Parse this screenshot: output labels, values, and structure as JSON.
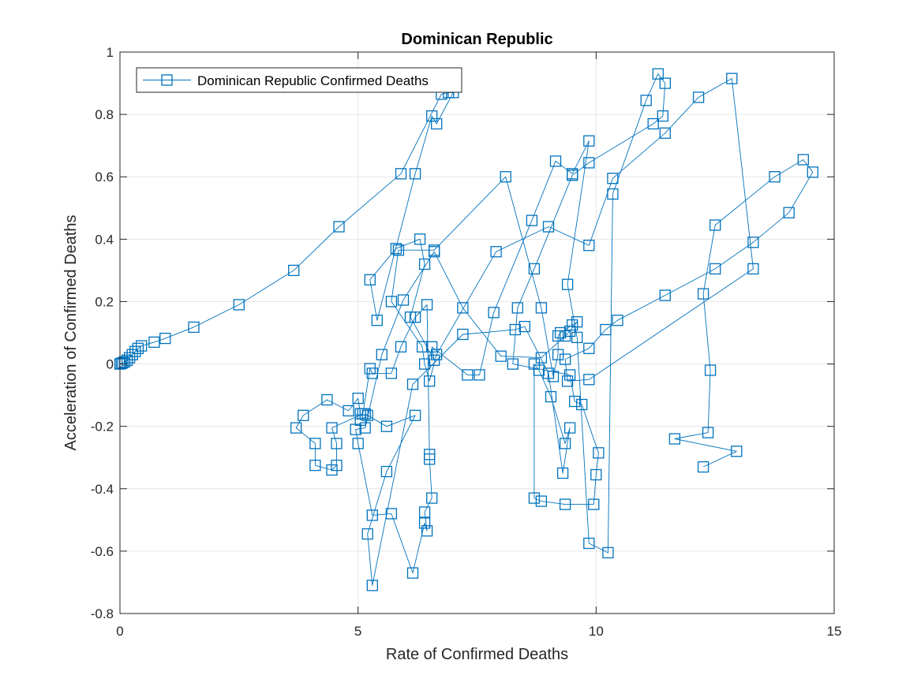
{
  "chart_data": {
    "type": "line",
    "title": "Dominican Republic",
    "xlabel": "Rate of Confirmed Deaths",
    "ylabel": "Acceleration of Confirmed Deaths",
    "xlim": [
      0,
      15
    ],
    "ylim": [
      -0.8,
      1
    ],
    "xticks": [
      0,
      5,
      10,
      15
    ],
    "yticks": [
      -0.8,
      -0.6,
      -0.4,
      -0.2,
      0,
      0.2,
      0.4,
      0.6,
      0.8,
      1
    ],
    "xtick_labels": [
      "0",
      "5",
      "10",
      "15"
    ],
    "ytick_labels": [
      "-0.8",
      "-0.6",
      "-0.4",
      "-0.2",
      "0",
      "0.2",
      "0.4",
      "0.6",
      "0.8",
      "1"
    ],
    "grid": true,
    "legend_location": "top-left",
    "series": [
      {
        "name": "Dominican Republic Confirmed Deaths",
        "color": "#0072BD",
        "marker": "square",
        "x": [
          0,
          0.03,
          0.06,
          0.1,
          0.15,
          0.2,
          0.26,
          0.32,
          0.38,
          0.45,
          0.72,
          0.95,
          1.55,
          2.5,
          3.65,
          4.6,
          5.9,
          6.75,
          6.9,
          7.0,
          6.65,
          6.55,
          6.2,
          5.4,
          5.25,
          5.8,
          6.3,
          6.4,
          6.1,
          6.6,
          6.55,
          7.3,
          7.55,
          7.85,
          8.65,
          9.15,
          9.5,
          9.85,
          9.4,
          9.6,
          9.85,
          10.25,
          10.35,
          11.05,
          11.3,
          11.45,
          11.4,
          11.2,
          9.85,
          9.5,
          8.7,
          8.35,
          8.25,
          9.45,
          9.55,
          9.7,
          10.05,
          10.0,
          9.95,
          9.35,
          8.85,
          8.7,
          8.7,
          8.8,
          9.05,
          9.35,
          9.45,
          9.3,
          9.0,
          8.5,
          8.3,
          7.2,
          6.15,
          5.3,
          5.2,
          5.6,
          6.2,
          5.6,
          5.15,
          5.2,
          5.05,
          5.05,
          5.0,
          4.8,
          4.35,
          3.85,
          3.7,
          4.1,
          4.1,
          4.45,
          4.55,
          4.55,
          4.45,
          5.1,
          5.25,
          5.3,
          5.7,
          5.9,
          6.2,
          6.45,
          6.5,
          6.5,
          6.55,
          6.4,
          6.45,
          6.4,
          6.15,
          5.7,
          5.3,
          5.0,
          4.95,
          5.15,
          5.5,
          5.95,
          6.6,
          7.2,
          8.0,
          8.85,
          9.35,
          9.45,
          9.6,
          9.5,
          9.25,
          9.2,
          9.2,
          9.1,
          8.85,
          8.1,
          6.6,
          5.85,
          5.7,
          6.35,
          6.4,
          6.5,
          6.65,
          7.9,
          9.0,
          9.85,
          10.35,
          11.45,
          12.15,
          12.85,
          13.3,
          9.85,
          9.4,
          9.35,
          9.85,
          10.2,
          10.45,
          11.45,
          12.5,
          13.3,
          14.05,
          14.55,
          14.35,
          13.75,
          12.5,
          12.25,
          12.4,
          12.35,
          11.65,
          12.95,
          12.25
        ],
        "y": [
          0,
          0.002,
          0.004,
          0.007,
          0.012,
          0.02,
          0.03,
          0.04,
          0.05,
          0.058,
          0.07,
          0.082,
          0.118,
          0.19,
          0.3,
          0.44,
          0.61,
          0.865,
          0.87,
          0.87,
          0.77,
          0.795,
          0.61,
          0.14,
          0.27,
          0.37,
          0.4,
          0.32,
          0.15,
          0.012,
          0.055,
          -0.035,
          -0.035,
          0.165,
          0.46,
          0.65,
          0.61,
          0.715,
          0.255,
          0.085,
          -0.575,
          -0.605,
          0.545,
          0.845,
          0.93,
          0.9,
          0.795,
          0.77,
          0.645,
          0.605,
          0.305,
          0.18,
          0.0,
          -0.035,
          -0.12,
          -0.13,
          -0.285,
          -0.355,
          -0.45,
          -0.45,
          -0.44,
          -0.43,
          0.0,
          -0.02,
          -0.105,
          -0.255,
          -0.205,
          -0.35,
          -0.03,
          0.12,
          0.11,
          0.095,
          -0.065,
          -0.71,
          -0.545,
          -0.345,
          -0.165,
          -0.2,
          -0.16,
          -0.165,
          -0.18,
          -0.16,
          -0.11,
          -0.15,
          -0.115,
          -0.165,
          -0.205,
          -0.255,
          -0.325,
          -0.34,
          -0.325,
          -0.255,
          -0.205,
          -0.16,
          -0.015,
          -0.03,
          -0.03,
          0.055,
          0.15,
          0.19,
          -0.29,
          -0.305,
          -0.43,
          -0.475,
          -0.535,
          -0.51,
          -0.67,
          -0.48,
          -0.485,
          -0.255,
          -0.21,
          -0.205,
          0.03,
          0.205,
          0.36,
          0.18,
          0.025,
          0.02,
          0.09,
          0.105,
          0.135,
          0.125,
          0.1,
          0.09,
          0.03,
          -0.04,
          0.18,
          0.6,
          0.365,
          0.365,
          0.2,
          0.055,
          0.0,
          -0.055,
          0.03,
          0.36,
          0.44,
          0.38,
          0.595,
          0.74,
          0.855,
          0.915,
          0.305,
          -0.05,
          -0.055,
          0.015,
          0.05,
          0.11,
          0.14,
          0.22,
          0.305,
          0.39,
          0.485,
          0.615,
          0.655,
          0.6,
          0.445,
          0.225,
          -0.02,
          -0.22,
          -0.24,
          -0.28,
          -0.33
        ]
      }
    ]
  }
}
